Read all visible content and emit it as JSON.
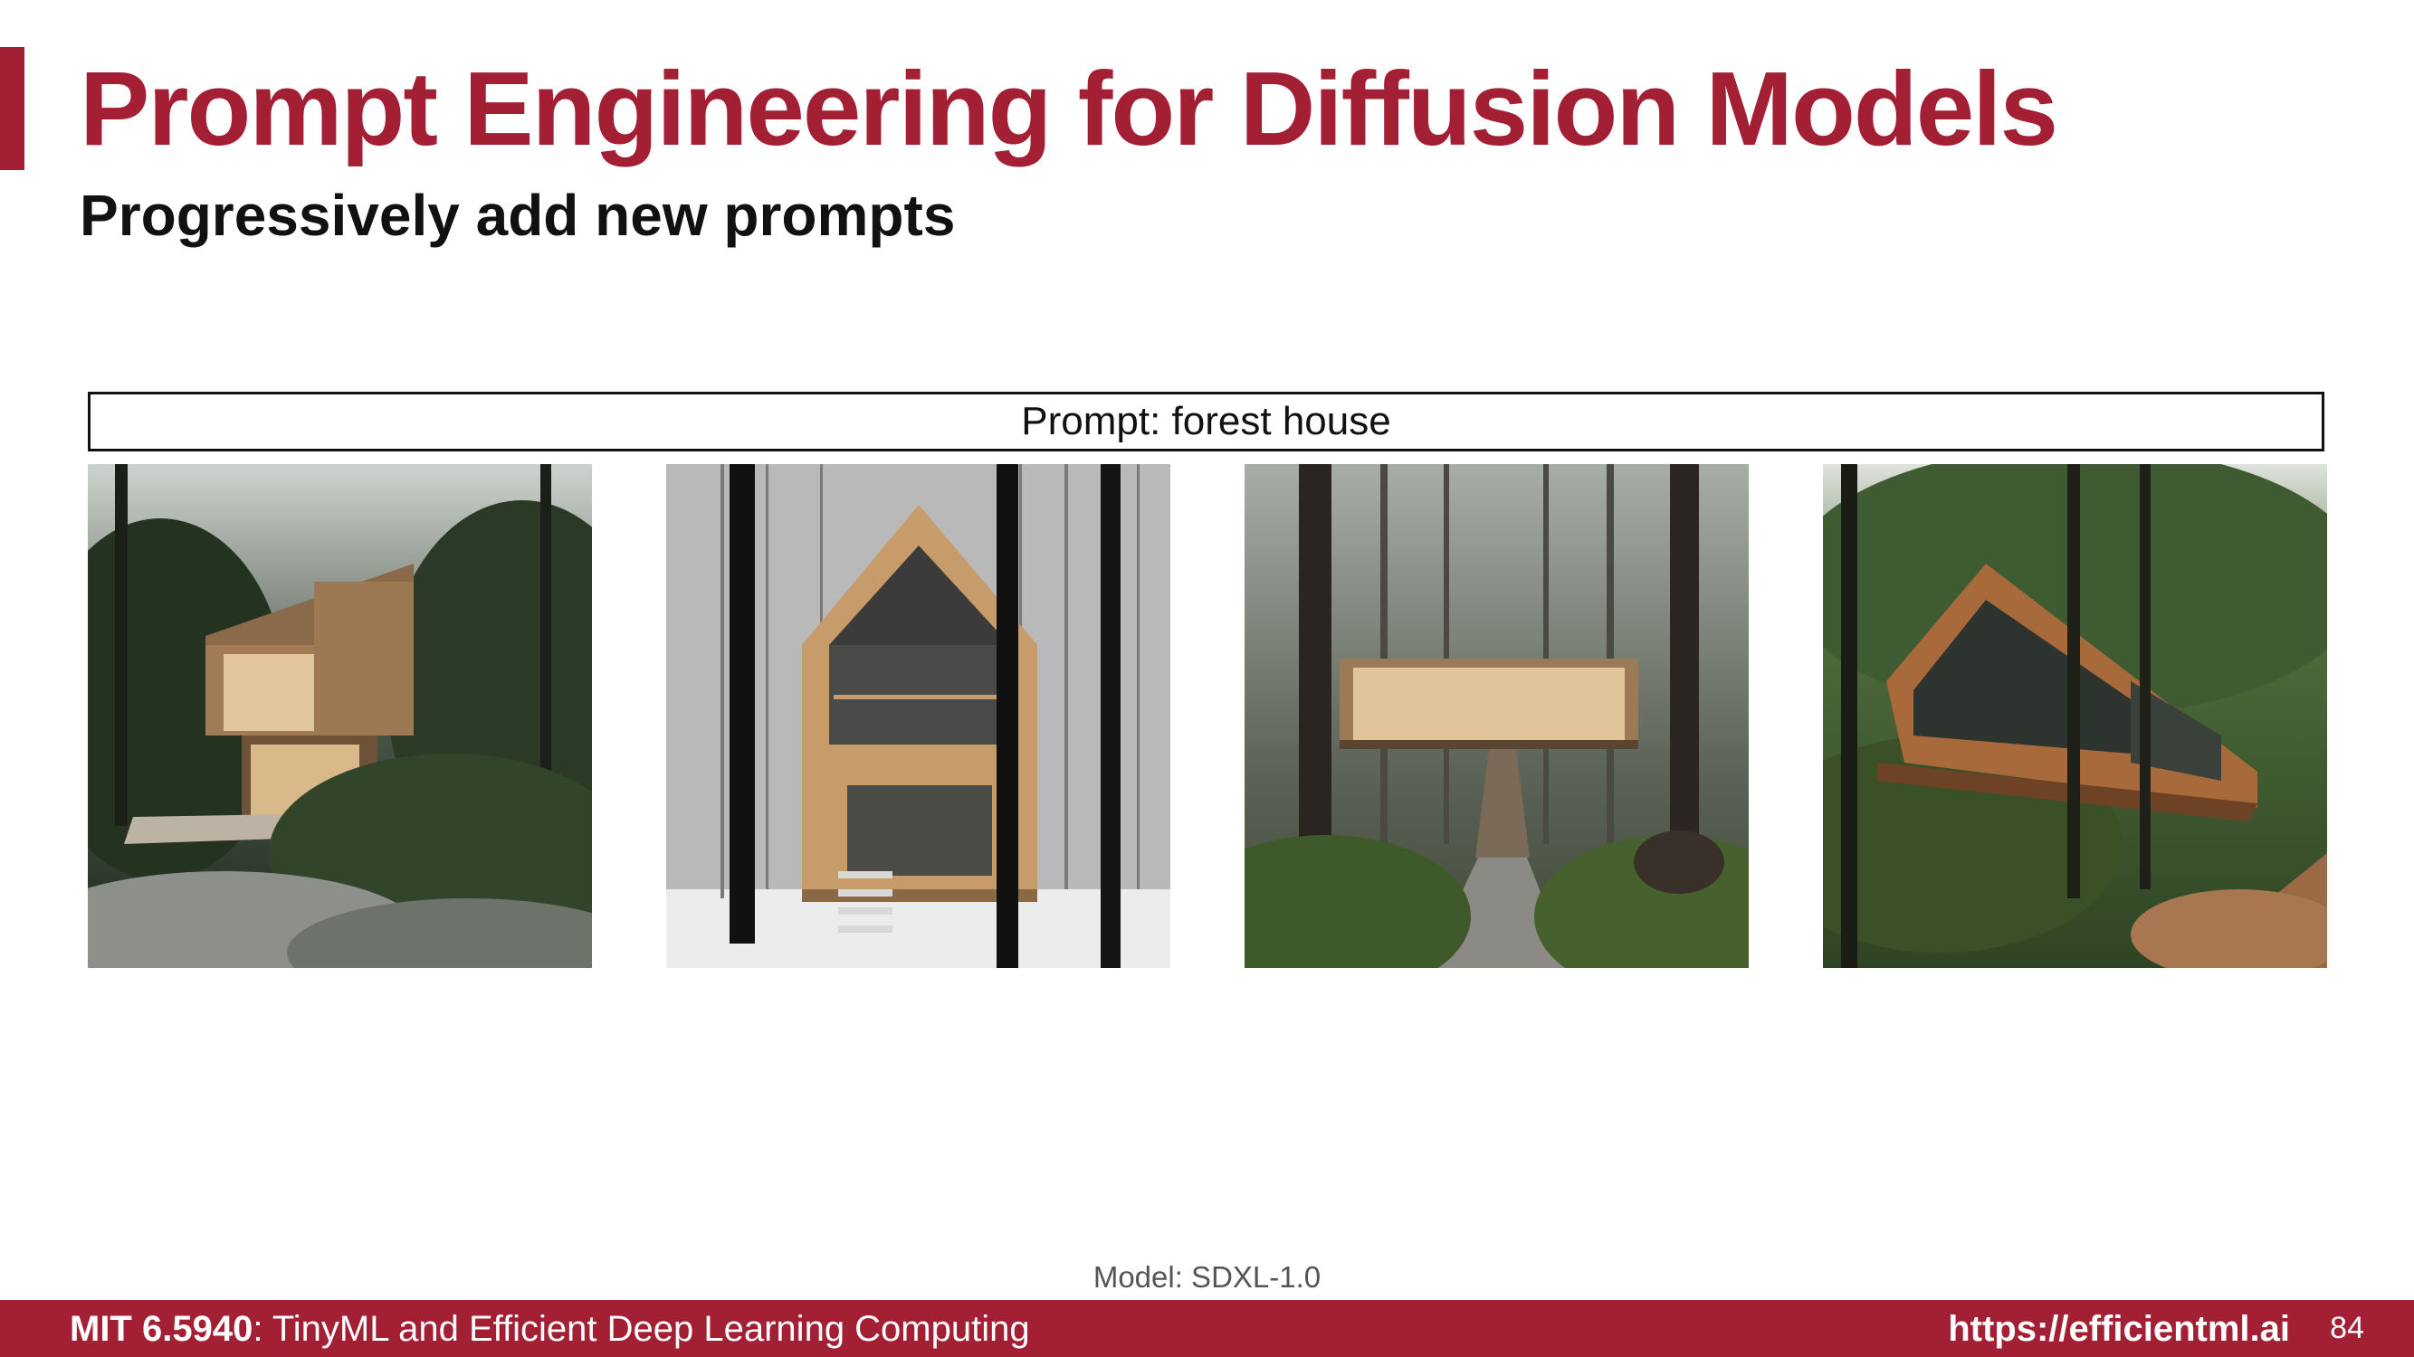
{
  "slide": {
    "title": "Prompt Engineering for Diffusion Models",
    "subtitle": "Progressively add new prompts",
    "prompt_label": "Prompt: forest house",
    "model_note": "Model: SDXL-1.0",
    "accent_color": "#a31f34"
  },
  "images": [
    {
      "name": "modern wooden forest house with cantilevered upper floor and deck"
    },
    {
      "name": "a-frame wooden house among snowy birch trees with stairs"
    },
    {
      "name": "elevated wooden cabin with staircase and path in dense forest"
    },
    {
      "name": "angular wooden house with glass walls in forest with stone path"
    }
  ],
  "footer": {
    "course_code": "MIT 6.5940",
    "course_name": ": TinyML and Efficient Deep Learning Computing",
    "url": "https://efficientml.ai",
    "page_number": "84"
  }
}
